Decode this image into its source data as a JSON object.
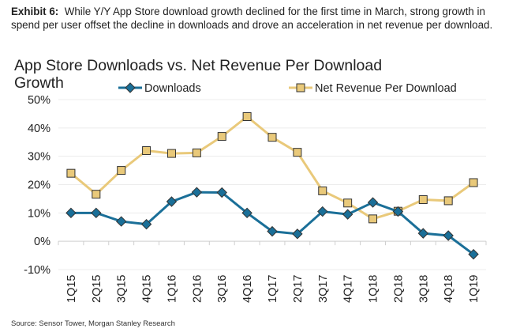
{
  "caption": {
    "label": "Exhibit 6:",
    "text": "While Y/Y App Store download growth declined for the first time in March, strong growth in spend per user offset the decline in downloads and drove an acceleration in net revenue per download."
  },
  "source": "Source: Sensor Tower, Morgan Stanley Research",
  "chart_data": {
    "type": "line",
    "title": "App Store Downloads vs. Net Revenue Per Download Growth",
    "categories": [
      "1Q15",
      "2Q15",
      "3Q15",
      "4Q15",
      "1Q16",
      "2Q16",
      "3Q16",
      "4Q16",
      "1Q17",
      "2Q17",
      "3Q17",
      "4Q17",
      "1Q18",
      "2Q18",
      "3Q18",
      "4Q18",
      "1Q19"
    ],
    "series": [
      {
        "name": "Downloads",
        "color": "#1a6f98",
        "marker": "diamond",
        "values": [
          10,
          10,
          7,
          6,
          14,
          17.3,
          17.2,
          10,
          3.5,
          2.6,
          10.5,
          9.5,
          13.7,
          10.5,
          2.8,
          2,
          -4.6
        ]
      },
      {
        "name": "Net Revenue Per Download",
        "color": "#e9c97a",
        "marker": "square",
        "values": [
          24,
          16.6,
          25,
          32,
          31,
          31.2,
          37,
          44,
          36.7,
          31.4,
          17.8,
          13.5,
          7.9,
          10.6,
          14.7,
          14.3,
          20.7
        ]
      }
    ],
    "ylim": [
      -10,
      50
    ],
    "yticks": [
      "-10%",
      "0%",
      "10%",
      "20%",
      "30%",
      "40%",
      "50%"
    ],
    "grid": true,
    "legend": "top"
  }
}
